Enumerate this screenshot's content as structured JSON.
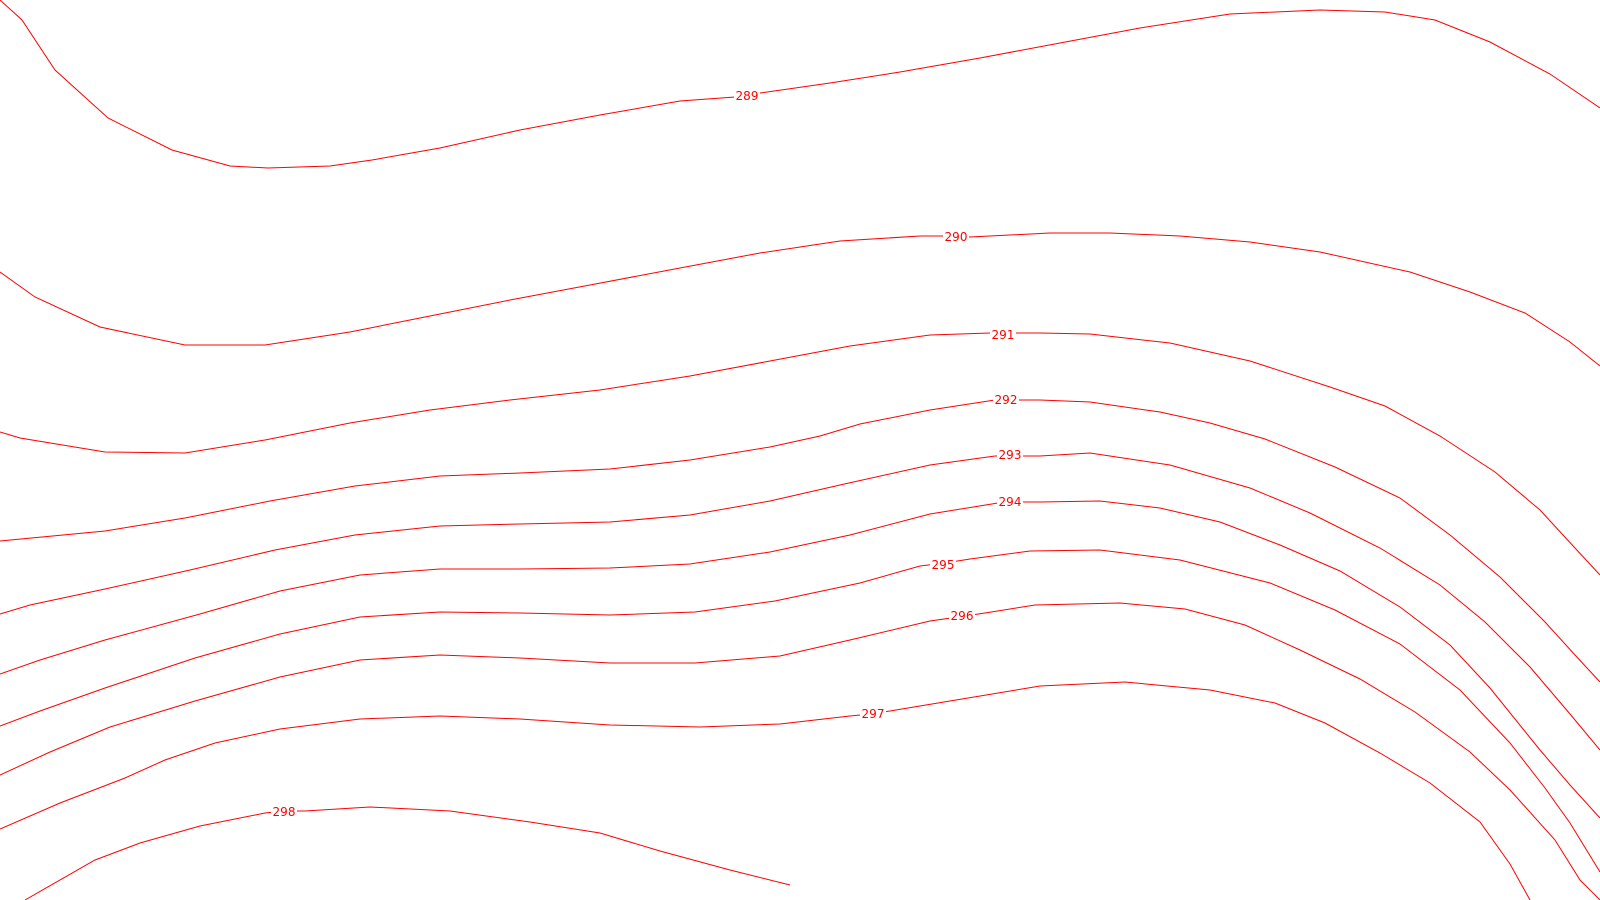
{
  "map": {
    "type": "contour-map",
    "line_color": "#ff0000",
    "background_color": "#ffffff",
    "contours": [
      {
        "id": "c289",
        "label": "289",
        "value": 289
      },
      {
        "id": "c290",
        "label": "290",
        "value": 290
      },
      {
        "id": "c291",
        "label": "291",
        "value": 291
      },
      {
        "id": "c292",
        "label": "292",
        "value": 292
      },
      {
        "id": "c293",
        "label": "293",
        "value": 293
      },
      {
        "id": "c294",
        "label": "294",
        "value": 294
      },
      {
        "id": "c295",
        "label": "295",
        "value": 295
      },
      {
        "id": "c296",
        "label": "296",
        "value": 296
      },
      {
        "id": "c297",
        "label": "297",
        "value": 297
      },
      {
        "id": "c298",
        "label": "298",
        "value": 298
      }
    ]
  }
}
